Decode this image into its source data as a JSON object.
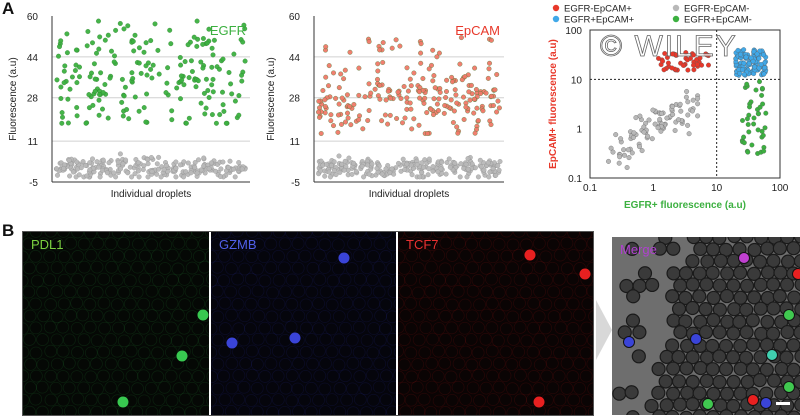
{
  "panel_labels": {
    "a": "A",
    "b": "B"
  },
  "watermark": "© WILEY",
  "chart_data": [
    {
      "type": "scatter",
      "title": "EGFR",
      "xlabel": "Individual droplets",
      "ylabel": "Fluorescence (a.u)",
      "ylim": [
        -5,
        60
      ],
      "yticks": [
        -5,
        11,
        28,
        44,
        60
      ],
      "grid": true,
      "series": [
        {
          "name": "EGFR",
          "color": "#3cb040",
          "n": 200,
          "y_range": [
            18,
            58
          ],
          "y_center": 38,
          "y_spread": 10
        },
        {
          "color": "#b8b8b8",
          "n": 230,
          "y_range": [
            -3,
            6
          ],
          "y_center": 0.5,
          "y_spread": 2
        }
      ]
    },
    {
      "type": "scatter",
      "title": "EpCAM",
      "xlabel": "Individual droplets",
      "ylabel": "Fluorescence (a.u)",
      "ylim": [
        -5,
        60
      ],
      "yticks": [
        -5,
        11,
        28,
        44,
        60
      ],
      "grid": true,
      "series": [
        {
          "name": "EpCAM",
          "color": "#f07868",
          "n": 230,
          "y_range": [
            14,
            52
          ],
          "y_center": 26,
          "y_spread": 6
        },
        {
          "color": "#b8b8b8",
          "n": 230,
          "y_range": [
            -3,
            8
          ],
          "y_center": 0.5,
          "y_spread": 2
        }
      ]
    },
    {
      "type": "scatter",
      "xlabel": "EGFR+ fluorescence (a.u)",
      "ylabel": "EpCAM+ fluorescence (a.u)",
      "xscale": "log",
      "yscale": "log",
      "xlim": [
        0.1,
        100
      ],
      "ylim": [
        0.1,
        100
      ],
      "ticks": [
        0.1,
        1,
        10,
        100
      ],
      "tick_labels": [
        "0.1",
        "1",
        "10",
        "100"
      ],
      "threshold_x": 10,
      "threshold_y": 10,
      "legend_position": "top",
      "series": [
        {
          "name": "EGFR-EpCAM+",
          "color": "#e8382a",
          "n": 45,
          "x_range": [
            1.2,
            8
          ],
          "y_range": [
            15,
            35
          ]
        },
        {
          "name": "EGFR-EpCAM-",
          "color": "#b8b8b8",
          "n": 90,
          "x_range": [
            0.15,
            5
          ],
          "y_range": [
            0.15,
            8
          ]
        },
        {
          "name": "EGFR+EpCAM+",
          "color": "#40a8e8",
          "n": 120,
          "x_range": [
            20,
            60
          ],
          "y_range": [
            12,
            40
          ]
        },
        {
          "name": "EGFR+EpCAM-",
          "color": "#3cb040",
          "n": 40,
          "x_range": [
            25,
            60
          ],
          "y_range": [
            0.3,
            9
          ]
        }
      ]
    }
  ],
  "microscopy": {
    "channels": [
      {
        "label": "PDL1",
        "label_color": "#7cd040",
        "cell_color": "#38c850"
      },
      {
        "label": "GZMB",
        "label_color": "#5060e8",
        "cell_color": "#3a44d8"
      },
      {
        "label": "TCF7",
        "label_color": "#e83030",
        "cell_color": "#e82020"
      }
    ],
    "merge_label": "Merge",
    "merge_label_color": "#b040d0"
  }
}
